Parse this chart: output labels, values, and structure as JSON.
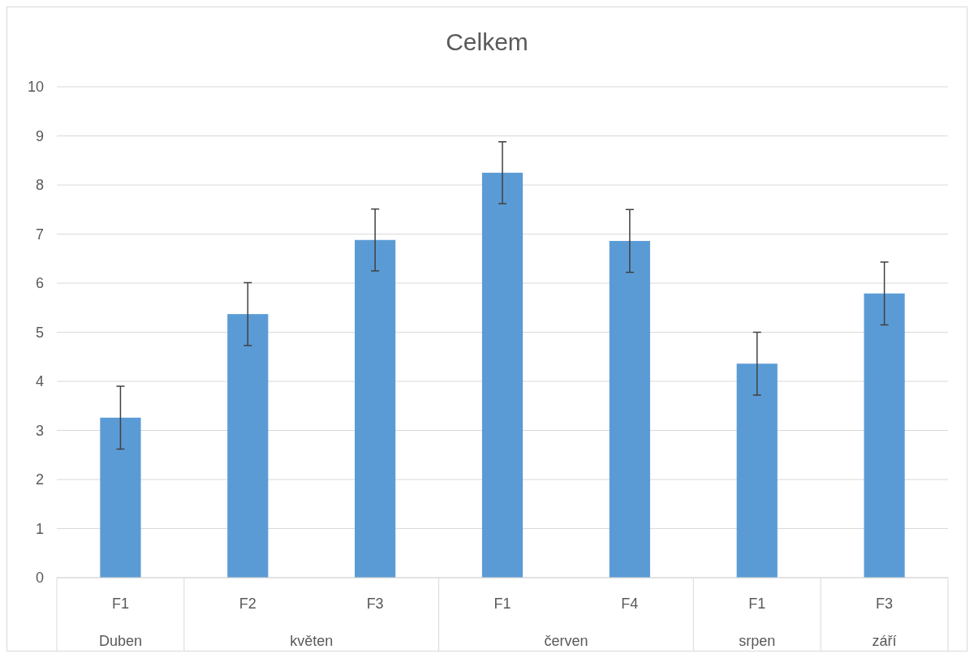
{
  "chart_data": {
    "type": "bar",
    "title": "Celkem",
    "categories": [
      "F1",
      "F2",
      "F3",
      "F1",
      "F4",
      "F1",
      "F3"
    ],
    "values": [
      3.26,
      5.37,
      6.88,
      8.25,
      6.86,
      4.36,
      5.79
    ],
    "errors": [
      0.64,
      0.64,
      0.63,
      0.63,
      0.64,
      0.64,
      0.64
    ],
    "color": "#5b9bd5",
    "ylim": [
      0,
      10
    ],
    "yticks": [
      0,
      1,
      2,
      3,
      4,
      5,
      6,
      7,
      8,
      9,
      10
    ],
    "grid": true,
    "annotations": [
      "Duben",
      "květen",
      "červen",
      "srpen",
      "září"
    ]
  }
}
